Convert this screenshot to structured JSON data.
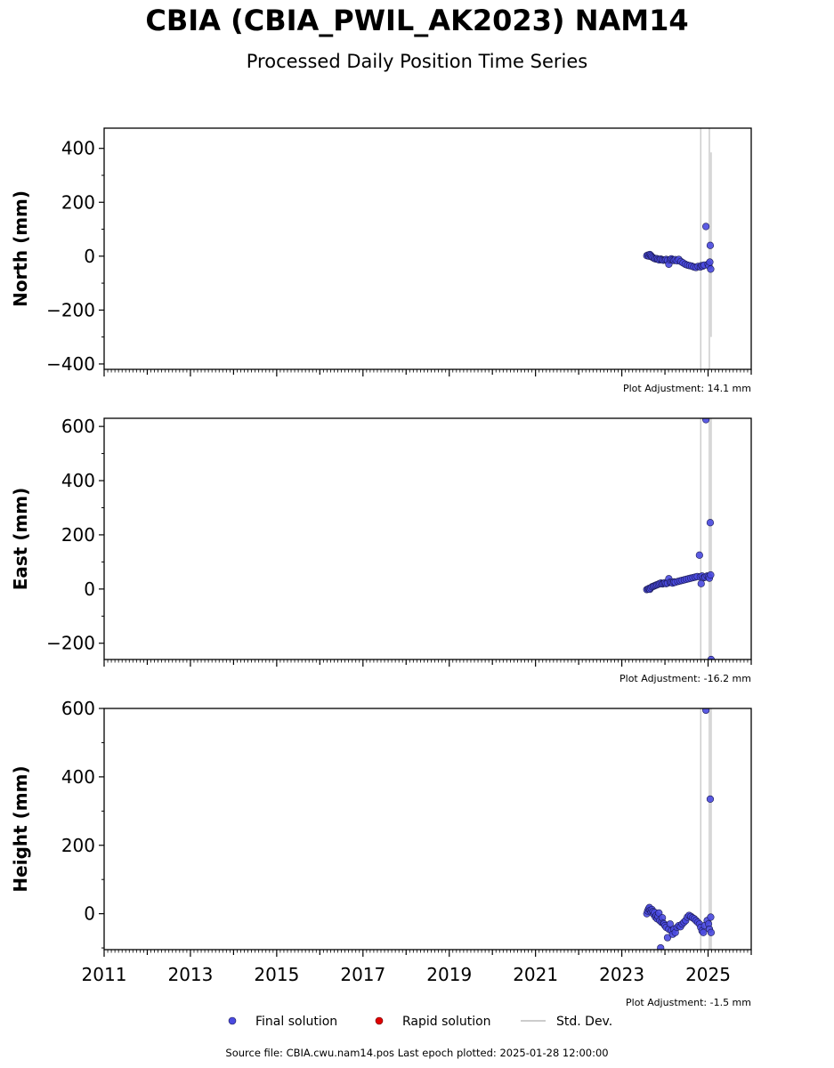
{
  "header": {
    "title": "CBIA (CBIA_PWIL_AK2023) NAM14",
    "subtitle": "Processed Daily Position Time Series"
  },
  "footer": {
    "source": "Source file: CBIA.cwu.nam14.pos  Last epoch plotted: 2025-01-28 12:00:00"
  },
  "legend": {
    "final": "Final solution",
    "rapid": "Rapid solution",
    "std": "Std. Dev."
  },
  "colors": {
    "final": "#4a4ae0",
    "final_edge": "#1a1a50",
    "rapid": "#e00000",
    "std": "#cccccc"
  },
  "chart_data": [
    {
      "type": "scatter",
      "ylabel": "North (mm)",
      "adjustment": "Plot Adjustment: 14.1 mm",
      "xlim": [
        2011.0,
        2026.0
      ],
      "ylim": [
        -420,
        475
      ],
      "yticks": [
        -400,
        -200,
        0,
        200,
        400
      ],
      "ytick_labels": [
        "−400",
        "−200",
        "0",
        "200",
        "400"
      ],
      "series": [
        {
          "name": "Final solution",
          "points": [
            [
              2023.58,
              2
            ],
            [
              2023.61,
              4
            ],
            [
              2023.63,
              0
            ],
            [
              2023.65,
              6
            ],
            [
              2023.67,
              3
            ],
            [
              2023.69,
              -2
            ],
            [
              2023.72,
              -5
            ],
            [
              2023.75,
              -8
            ],
            [
              2023.78,
              -10
            ],
            [
              2023.81,
              -9
            ],
            [
              2023.84,
              -12
            ],
            [
              2023.87,
              -14
            ],
            [
              2023.9,
              -11
            ],
            [
              2023.93,
              -13
            ],
            [
              2023.96,
              -15
            ],
            [
              2024.0,
              -14
            ],
            [
              2024.03,
              -12
            ],
            [
              2024.06,
              -16
            ],
            [
              2024.09,
              -30
            ],
            [
              2024.12,
              -13
            ],
            [
              2024.15,
              -10
            ],
            [
              2024.18,
              -14
            ],
            [
              2024.21,
              -16
            ],
            [
              2024.24,
              -13
            ],
            [
              2024.28,
              -17
            ],
            [
              2024.32,
              -12
            ],
            [
              2024.37,
              -20
            ],
            [
              2024.42,
              -25
            ],
            [
              2024.47,
              -30
            ],
            [
              2024.52,
              -33
            ],
            [
              2024.57,
              -35
            ],
            [
              2024.62,
              -37
            ],
            [
              2024.67,
              -40
            ],
            [
              2024.72,
              -42
            ],
            [
              2024.77,
              -38
            ],
            [
              2024.82,
              -40
            ],
            [
              2024.85,
              -35
            ],
            [
              2024.88,
              -37
            ],
            [
              2024.91,
              -33
            ],
            [
              2024.95,
              110
            ],
            [
              2025.0,
              -30
            ],
            [
              2025.02,
              -36
            ],
            [
              2025.04,
              -22
            ],
            [
              2025.05,
              40
            ],
            [
              2025.06,
              -48
            ]
          ]
        }
      ],
      "std_bars": [
        [
          2024.83,
          -420,
          475
        ],
        [
          2025.03,
          -420,
          475
        ],
        [
          2025.07,
          -300,
          385
        ]
      ]
    },
    {
      "type": "scatter",
      "ylabel": "East (mm)",
      "adjustment": "Plot Adjustment: -16.2 mm",
      "xlim": [
        2011.0,
        2026.0
      ],
      "ylim": [
        -260,
        630
      ],
      "yticks": [
        -200,
        0,
        200,
        400,
        600
      ],
      "ytick_labels": [
        "−200",
        "0",
        "200",
        "400",
        "600"
      ],
      "series": [
        {
          "name": "Final solution",
          "points": [
            [
              2023.58,
              -2
            ],
            [
              2023.61,
              0
            ],
            [
              2023.63,
              2
            ],
            [
              2023.65,
              -1
            ],
            [
              2023.67,
              4
            ],
            [
              2023.7,
              8
            ],
            [
              2023.73,
              10
            ],
            [
              2023.76,
              12
            ],
            [
              2023.79,
              14
            ],
            [
              2023.82,
              16
            ],
            [
              2023.85,
              18
            ],
            [
              2023.88,
              20
            ],
            [
              2023.91,
              22
            ],
            [
              2023.94,
              19
            ],
            [
              2023.97,
              21
            ],
            [
              2024.0,
              23
            ],
            [
              2024.03,
              20
            ],
            [
              2024.06,
              22
            ],
            [
              2024.09,
              38
            ],
            [
              2024.12,
              25
            ],
            [
              2024.15,
              24
            ],
            [
              2024.18,
              22
            ],
            [
              2024.21,
              26
            ],
            [
              2024.24,
              25
            ],
            [
              2024.3,
              28
            ],
            [
              2024.35,
              30
            ],
            [
              2024.4,
              32
            ],
            [
              2024.45,
              34
            ],
            [
              2024.5,
              36
            ],
            [
              2024.55,
              38
            ],
            [
              2024.6,
              40
            ],
            [
              2024.65,
              42
            ],
            [
              2024.7,
              44
            ],
            [
              2024.75,
              46
            ],
            [
              2024.8,
              125
            ],
            [
              2024.82,
              45
            ],
            [
              2024.84,
              20
            ],
            [
              2024.86,
              48
            ],
            [
              2024.9,
              42
            ],
            [
              2024.93,
              44
            ],
            [
              2024.95,
              625
            ],
            [
              2024.98,
              48
            ],
            [
              2025.01,
              46
            ],
            [
              2025.03,
              40
            ],
            [
              2025.05,
              245
            ],
            [
              2025.06,
              52
            ],
            [
              2025.07,
              -260
            ]
          ]
        }
      ],
      "std_bars": [
        [
          2024.83,
          -260,
          630
        ],
        [
          2025.03,
          -260,
          630
        ],
        [
          2025.07,
          -260,
          630
        ]
      ]
    },
    {
      "type": "scatter",
      "ylabel": "Height (mm)",
      "adjustment": "Plot Adjustment: -1.5 mm",
      "xlim": [
        2011.0,
        2026.0
      ],
      "ylim": [
        -105,
        600
      ],
      "yticks": [
        0,
        200,
        400,
        600
      ],
      "ytick_labels": [
        "0",
        "200",
        "400",
        "600"
      ],
      "xticks": [
        2011,
        2013,
        2015,
        2017,
        2019,
        2021,
        2023,
        2025
      ],
      "xtick_labels": [
        "2011",
        "2013",
        "2015",
        "2017",
        "2019",
        "2021",
        "2023",
        "2025"
      ],
      "series": [
        {
          "name": "Final solution",
          "points": [
            [
              2023.58,
              0
            ],
            [
              2023.6,
              8
            ],
            [
              2023.62,
              14
            ],
            [
              2023.64,
              18
            ],
            [
              2023.66,
              10
            ],
            [
              2023.68,
              5
            ],
            [
              2023.7,
              12
            ],
            [
              2023.72,
              6
            ],
            [
              2023.74,
              -2
            ],
            [
              2023.76,
              4
            ],
            [
              2023.78,
              -10
            ],
            [
              2023.8,
              -5
            ],
            [
              2023.82,
              -15
            ],
            [
              2023.84,
              -8
            ],
            [
              2023.86,
              2
            ],
            [
              2023.88,
              -20
            ],
            [
              2023.9,
              -100
            ],
            [
              2023.92,
              -25
            ],
            [
              2023.94,
              -12
            ],
            [
              2023.96,
              -28
            ],
            [
              2023.98,
              -30
            ],
            [
              2024.0,
              -35
            ],
            [
              2024.03,
              -40
            ],
            [
              2024.06,
              -70
            ],
            [
              2024.09,
              -45
            ],
            [
              2024.12,
              -30
            ],
            [
              2024.15,
              -50
            ],
            [
              2024.18,
              -60
            ],
            [
              2024.21,
              -45
            ],
            [
              2024.24,
              -55
            ],
            [
              2024.28,
              -40
            ],
            [
              2024.32,
              -35
            ],
            [
              2024.36,
              -38
            ],
            [
              2024.4,
              -30
            ],
            [
              2024.44,
              -25
            ],
            [
              2024.48,
              -20
            ],
            [
              2024.52,
              -10
            ],
            [
              2024.56,
              -5
            ],
            [
              2024.6,
              -8
            ],
            [
              2024.64,
              -12
            ],
            [
              2024.68,
              -15
            ],
            [
              2024.72,
              -20
            ],
            [
              2024.76,
              -25
            ],
            [
              2024.8,
              -30
            ],
            [
              2024.83,
              -40
            ],
            [
              2024.86,
              -50
            ],
            [
              2024.89,
              -55
            ],
            [
              2024.92,
              -35
            ],
            [
              2024.95,
              595
            ],
            [
              2024.98,
              -20
            ],
            [
              2025.01,
              -30
            ],
            [
              2025.03,
              -45
            ],
            [
              2025.05,
              335
            ],
            [
              2025.06,
              -10
            ],
            [
              2025.07,
              -55
            ]
          ]
        }
      ],
      "std_bars": [
        [
          2024.83,
          -105,
          600
        ],
        [
          2025.03,
          -105,
          600
        ],
        [
          2025.07,
          -105,
          600
        ]
      ]
    }
  ]
}
